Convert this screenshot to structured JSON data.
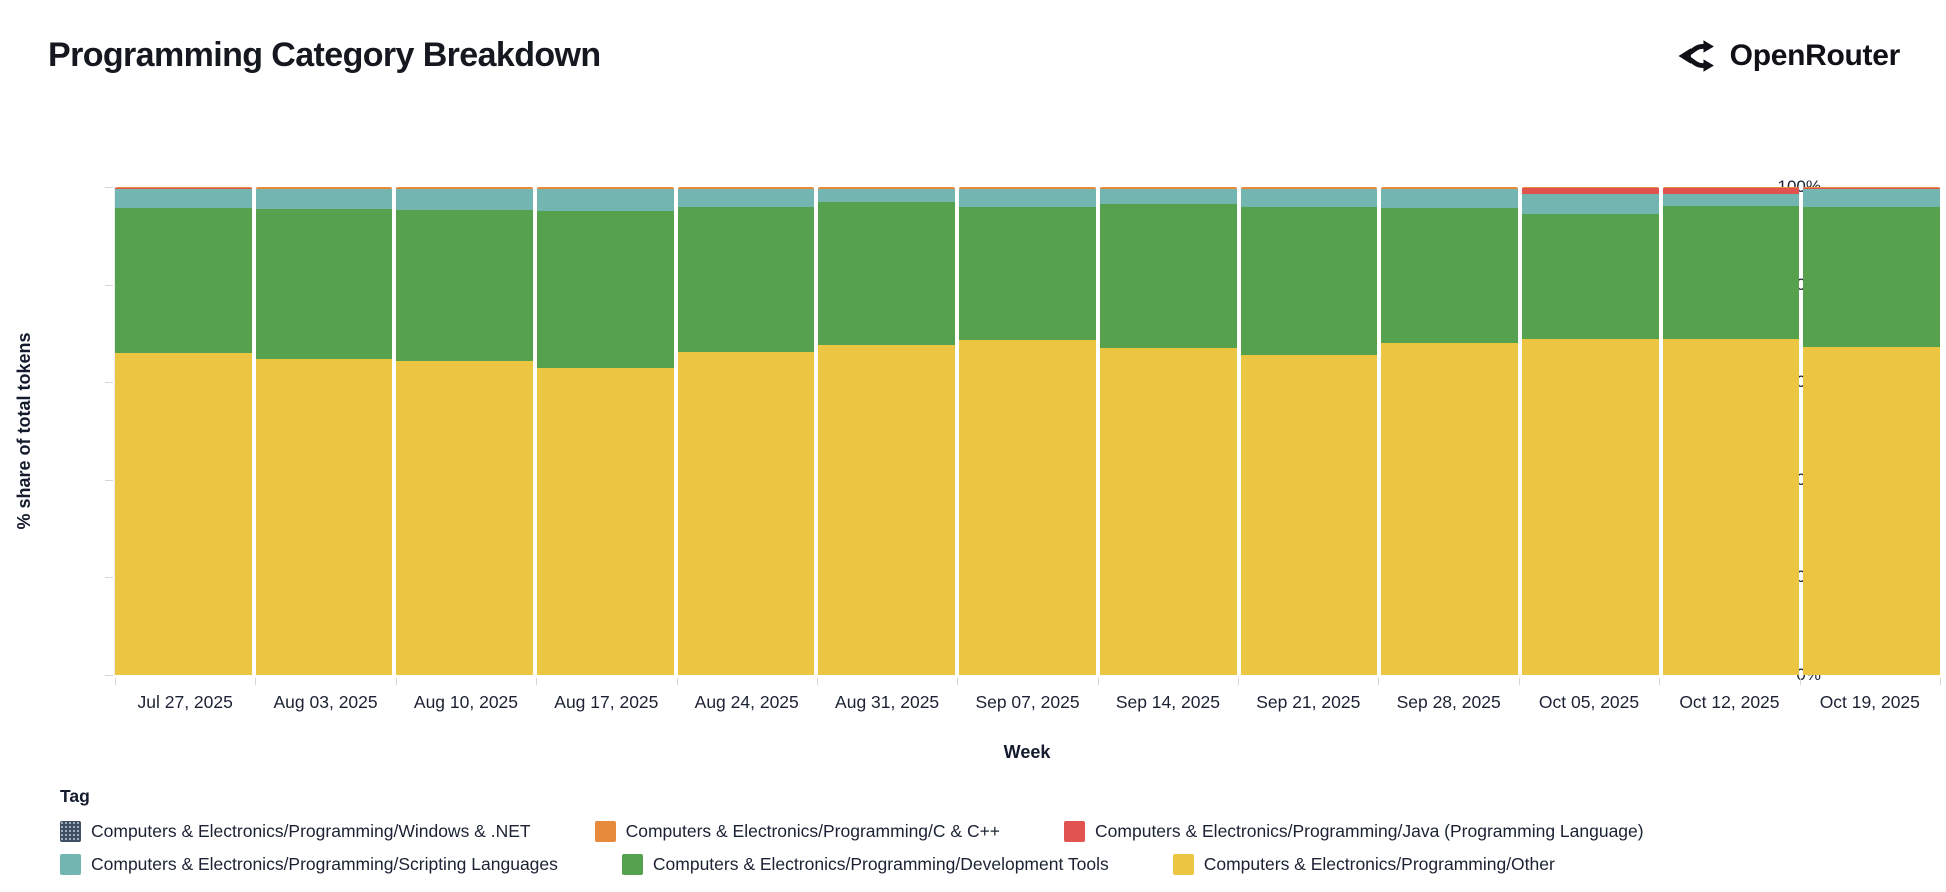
{
  "header": {
    "title": "Programming Category Breakdown",
    "brand": "OpenRouter"
  },
  "colors": {
    "other_yellow": "#ecc642",
    "dev_tools_green": "#55a14e",
    "scripting_teal": "#73b6b1",
    "java_red": "#e0534f",
    "c_cpp_orange": "#e78a3b",
    "windows_net_slate": "#3e4f63",
    "axis_text": "#1b2233",
    "tick_line": "#d7d7d7"
  },
  "chart_data": {
    "type": "bar",
    "stacked": true,
    "title": "Programming Category Breakdown",
    "xlabel": "Week",
    "ylabel": "% share of total tokens",
    "ylim": [
      0,
      100
    ],
    "grid": false,
    "ytick_labels": [
      "0%",
      "20%",
      "40%",
      "60%",
      "80%",
      "100%"
    ],
    "categories": [
      "Jul 27, 2025",
      "Aug 03, 2025",
      "Aug 10, 2025",
      "Aug 17, 2025",
      "Aug 24, 2025",
      "Aug 31, 2025",
      "Sep 07, 2025",
      "Sep 14, 2025",
      "Sep 21, 2025",
      "Sep 28, 2025",
      "Oct 05, 2025",
      "Oct 12, 2025",
      "Oct 19, 2025"
    ],
    "series": [
      {
        "name": "Computers & Electronics/Programming/Other",
        "color": "#ecc642",
        "values": [
          66.0,
          64.8,
          64.3,
          62.9,
          66.2,
          67.7,
          68.6,
          67.0,
          65.6,
          68.0,
          68.9,
          68.9,
          67.2
        ]
      },
      {
        "name": "Computers & Electronics/Programming/Development Tools",
        "color": "#55a14e",
        "values": [
          29.7,
          30.7,
          31.0,
          32.2,
          29.7,
          29.2,
          27.3,
          29.5,
          30.3,
          27.8,
          25.6,
          27.2,
          28.7
        ]
      },
      {
        "name": "Computers & Electronics/Programming/Scripting Languages",
        "color": "#73b6b1",
        "values": [
          3.9,
          4.0,
          4.2,
          4.4,
          3.6,
          2.6,
          3.6,
          3.0,
          3.6,
          3.7,
          4.0,
          2.5,
          3.8
        ]
      },
      {
        "name": "Computers & Electronics/Programming/Java (Programming Language)",
        "color": "#e0534f",
        "values": [
          0.1,
          0.1,
          0.1,
          0.1,
          0.1,
          0.1,
          0.1,
          0.1,
          0.1,
          0.1,
          1.3,
          1.2,
          0.1
        ]
      },
      {
        "name": "Computers & Electronics/Programming/C & C++",
        "color": "#e78a3b",
        "values": [
          0.3,
          0.4,
          0.4,
          0.4,
          0.4,
          0.4,
          0.4,
          0.4,
          0.4,
          0.4,
          0.2,
          0.2,
          0.2
        ]
      },
      {
        "name": "Computers & Electronics/Programming/Windows & .NET",
        "color": "#3e4f63",
        "pattern": "dots",
        "values": [
          0.0,
          0.0,
          0.0,
          0.0,
          0.0,
          0.0,
          0.0,
          0.0,
          0.0,
          0.0,
          0.0,
          0.0,
          0.0
        ]
      }
    ],
    "legend": {
      "title": "Tag",
      "position": "bottom",
      "items": [
        "Computers & Electronics/Programming/Windows & .NET",
        "Computers & Electronics/Programming/C & C++",
        "Computers & Electronics/Programming/Java (Programming Language)",
        "Computers & Electronics/Programming/Scripting Languages",
        "Computers & Electronics/Programming/Development Tools",
        "Computers & Electronics/Programming/Other"
      ]
    }
  }
}
